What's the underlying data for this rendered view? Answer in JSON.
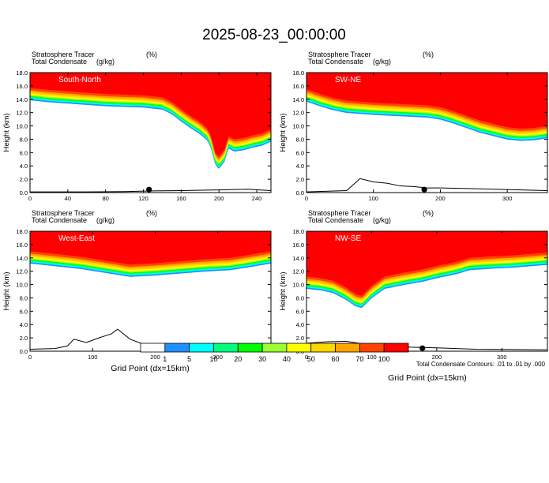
{
  "title": "2025-08-23_00:00:00",
  "chart_data": {
    "type": "heatmap",
    "title": "2025-08-23_00:00:00",
    "colorbar": {
      "bins": [
        {
          "label": "",
          "color": "#ffffff"
        },
        {
          "label": "1",
          "color": "#1e90ff"
        },
        {
          "label": "5",
          "color": "#00ffff"
        },
        {
          "label": "10",
          "color": "#00ff7f"
        },
        {
          "label": "20",
          "color": "#00ff00"
        },
        {
          "label": "30",
          "color": "#9aff32"
        },
        {
          "label": "40",
          "color": "#ffff00"
        },
        {
          "label": "50",
          "color": "#ffd700"
        },
        {
          "label": "60",
          "color": "#ffa500"
        },
        {
          "label": "70",
          "color": "#ff4500"
        },
        {
          "label": "100",
          "color": "#ff0000"
        }
      ],
      "tick_labels": [
        "1",
        "5",
        "10",
        "20",
        "30",
        "40",
        "50",
        "60",
        "70",
        "100"
      ]
    },
    "contour_note": "Total Condensate Contours: .01 to .01 by .000",
    "xlabel": "Grid Point (dx=15km)",
    "ylabel": "Height (km)",
    "panels": [
      {
        "name": "South-North",
        "var_label": "Stratosphere Tracer",
        "var_units": "(%)",
        "contour_label": "Total Condensate",
        "contour_units": "(g/kg)",
        "xlim": [
          0,
          255
        ],
        "xticks": [
          0,
          40,
          80,
          120,
          160,
          200,
          240
        ],
        "ylim": [
          0,
          18
        ],
        "yticks": [
          "0.0",
          "2.0",
          "4.0",
          "6.0",
          "8.0",
          "10.0",
          "12.0",
          "14.0",
          "16.0",
          "18.0"
        ],
        "tropopause_height": [
          [
            0,
            15.7
          ],
          [
            20,
            15.4
          ],
          [
            40,
            15.2
          ],
          [
            60,
            15.0
          ],
          [
            80,
            14.8
          ],
          [
            100,
            14.7
          ],
          [
            120,
            14.6
          ],
          [
            140,
            14.3
          ],
          [
            150,
            13.6
          ],
          [
            160,
            12.5
          ],
          [
            170,
            11.5
          ],
          [
            180,
            10.6
          ],
          [
            188,
            9.6
          ],
          [
            192,
            8.3
          ],
          [
            196,
            6.0
          ],
          [
            200,
            5.4
          ],
          [
            206,
            6.5
          ],
          [
            210,
            8.5
          ],
          [
            216,
            8.0
          ],
          [
            226,
            8.2
          ],
          [
            236,
            8.6
          ],
          [
            246,
            8.9
          ],
          [
            255,
            9.5
          ]
        ],
        "terrain_height": [
          [
            0,
            0.1
          ],
          [
            60,
            0.1
          ],
          [
            100,
            0.15
          ],
          [
            130,
            0.25
          ],
          [
            160,
            0.3
          ],
          [
            200,
            0.4
          ],
          [
            230,
            0.5
          ],
          [
            255,
            0.3
          ]
        ],
        "marker_x": 126
      },
      {
        "name": "SW-NE",
        "var_label": "Stratosphere Tracer",
        "var_units": "(%)",
        "contour_label": "Total Condensate",
        "contour_units": "(g/kg)",
        "xlim": [
          0,
          360
        ],
        "xticks": [
          0,
          100,
          200,
          300
        ],
        "ylim": [
          0,
          18
        ],
        "yticks": [
          "0.0",
          "2.0",
          "4.0",
          "6.0",
          "8.0",
          "10.0",
          "12.0",
          "14.0",
          "16.0",
          "18.0"
        ],
        "tropopause_height": [
          [
            0,
            15.5
          ],
          [
            20,
            14.8
          ],
          [
            40,
            14.2
          ],
          [
            60,
            13.8
          ],
          [
            100,
            13.5
          ],
          [
            140,
            13.3
          ],
          [
            180,
            13.1
          ],
          [
            200,
            12.8
          ],
          [
            220,
            12.2
          ],
          [
            240,
            11.5
          ],
          [
            260,
            10.8
          ],
          [
            280,
            10.3
          ],
          [
            300,
            9.8
          ],
          [
            320,
            9.6
          ],
          [
            340,
            9.7
          ],
          [
            360,
            10.0
          ]
        ],
        "terrain_height": [
          [
            0,
            0.1
          ],
          [
            60,
            0.3
          ],
          [
            70,
            1.2
          ],
          [
            80,
            2.1
          ],
          [
            100,
            1.6
          ],
          [
            120,
            1.4
          ],
          [
            140,
            1.0
          ],
          [
            160,
            0.9
          ],
          [
            180,
            0.7
          ],
          [
            200,
            0.7
          ],
          [
            240,
            0.6
          ],
          [
            280,
            0.5
          ],
          [
            320,
            0.4
          ],
          [
            360,
            0.3
          ]
        ],
        "marker_x": 176
      },
      {
        "name": "West-East",
        "var_label": "Stratosphere Tracer",
        "var_units": "(%)",
        "contour_label": "Total Condensate",
        "contour_units": "(g/kg)",
        "xlim": [
          0,
          385
        ],
        "xticks": [
          0,
          100,
          200,
          300
        ],
        "ylim": [
          0,
          18
        ],
        "yticks": [
          "0.0",
          "2.0",
          "4.0",
          "6.0",
          "8.0",
          "10.0",
          "12.0",
          "14.0",
          "16.0",
          "18.0"
        ],
        "tropopause_height": [
          [
            0,
            15.0
          ],
          [
            40,
            14.6
          ],
          [
            80,
            14.2
          ],
          [
            120,
            13.6
          ],
          [
            160,
            13.0
          ],
          [
            200,
            13.2
          ],
          [
            240,
            13.5
          ],
          [
            280,
            13.8
          ],
          [
            320,
            14.0
          ],
          [
            360,
            14.6
          ],
          [
            385,
            15.0
          ]
        ],
        "terrain_height": [
          [
            0,
            0.3
          ],
          [
            40,
            0.4
          ],
          [
            60,
            0.8
          ],
          [
            70,
            1.8
          ],
          [
            90,
            1.3
          ],
          [
            110,
            2.0
          ],
          [
            130,
            2.6
          ],
          [
            140,
            3.3
          ],
          [
            160,
            1.8
          ],
          [
            180,
            1.1
          ],
          [
            200,
            0.8
          ],
          [
            240,
            0.9
          ],
          [
            280,
            0.6
          ],
          [
            320,
            0.3
          ],
          [
            385,
            0.2
          ]
        ],
        "marker_x": 191
      },
      {
        "name": "NW-SE",
        "var_label": "Stratosphere Tracer",
        "var_units": "(%)",
        "contour_label": "Total Condensate",
        "contour_units": "(g/kg)",
        "xlim": [
          0,
          370
        ],
        "xticks": [
          0,
          100,
          200,
          300
        ],
        "ylim": [
          0,
          18
        ],
        "yticks": [
          "0.0",
          "2.0",
          "4.0",
          "6.0",
          "8.0",
          "10.0",
          "12.0",
          "14.0",
          "16.0",
          "18.0"
        ],
        "tropopause_height": [
          [
            0,
            11.2
          ],
          [
            20,
            11.0
          ],
          [
            40,
            10.6
          ],
          [
            60,
            9.6
          ],
          [
            75,
            8.6
          ],
          [
            85,
            8.3
          ],
          [
            100,
            9.8
          ],
          [
            120,
            11.2
          ],
          [
            150,
            11.8
          ],
          [
            180,
            12.3
          ],
          [
            200,
            12.8
          ],
          [
            230,
            13.4
          ],
          [
            250,
            14.0
          ],
          [
            280,
            14.2
          ],
          [
            320,
            14.4
          ],
          [
            370,
            14.8
          ]
        ],
        "terrain_height": [
          [
            0,
            1.2
          ],
          [
            30,
            1.4
          ],
          [
            60,
            1.5
          ],
          [
            80,
            1.2
          ],
          [
            100,
            1.0
          ],
          [
            120,
            0.9
          ],
          [
            160,
            0.6
          ],
          [
            200,
            0.5
          ],
          [
            260,
            0.3
          ],
          [
            370,
            0.2
          ]
        ],
        "marker_x": 178
      }
    ]
  }
}
